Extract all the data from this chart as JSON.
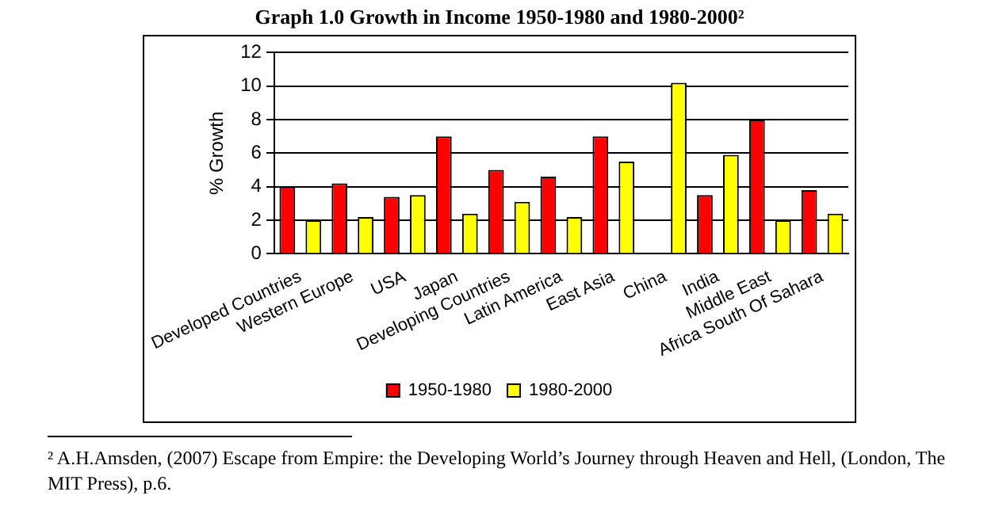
{
  "chart_data": {
    "type": "bar",
    "title": "Graph 1.0 Growth in Income 1950-1980 and 1980-2000²",
    "ylabel": "% Growth",
    "categories": [
      "Developed Countries",
      "Western Europe",
      "USA",
      "Japan",
      "Developing Countries",
      "Latin America",
      "East Asia",
      "China",
      "India",
      "Middle East",
      "Africa South Of Sahara"
    ],
    "series": [
      {
        "name": "1950-1980",
        "color": "#ff0000",
        "values": [
          4.0,
          4.2,
          3.4,
          7.0,
          5.0,
          4.6,
          7.0,
          null,
          3.5,
          8.0,
          3.8
        ]
      },
      {
        "name": "1980-2000",
        "color": "#ffff00",
        "values": [
          2.0,
          2.2,
          3.5,
          2.4,
          3.1,
          2.2,
          5.5,
          10.2,
          5.9,
          2.0,
          2.4
        ]
      }
    ],
    "ylim": [
      0,
      12
    ],
    "yticks": [
      0,
      2,
      4,
      6,
      8,
      10,
      12
    ],
    "grid": "y",
    "legend": "bottom",
    "annotations": [
      "² A.H.Amsden, (2007) Escape from Empire: the Developing World’s Journey through Heaven and Hell, (London, The MIT Press),  p.6."
    ]
  }
}
